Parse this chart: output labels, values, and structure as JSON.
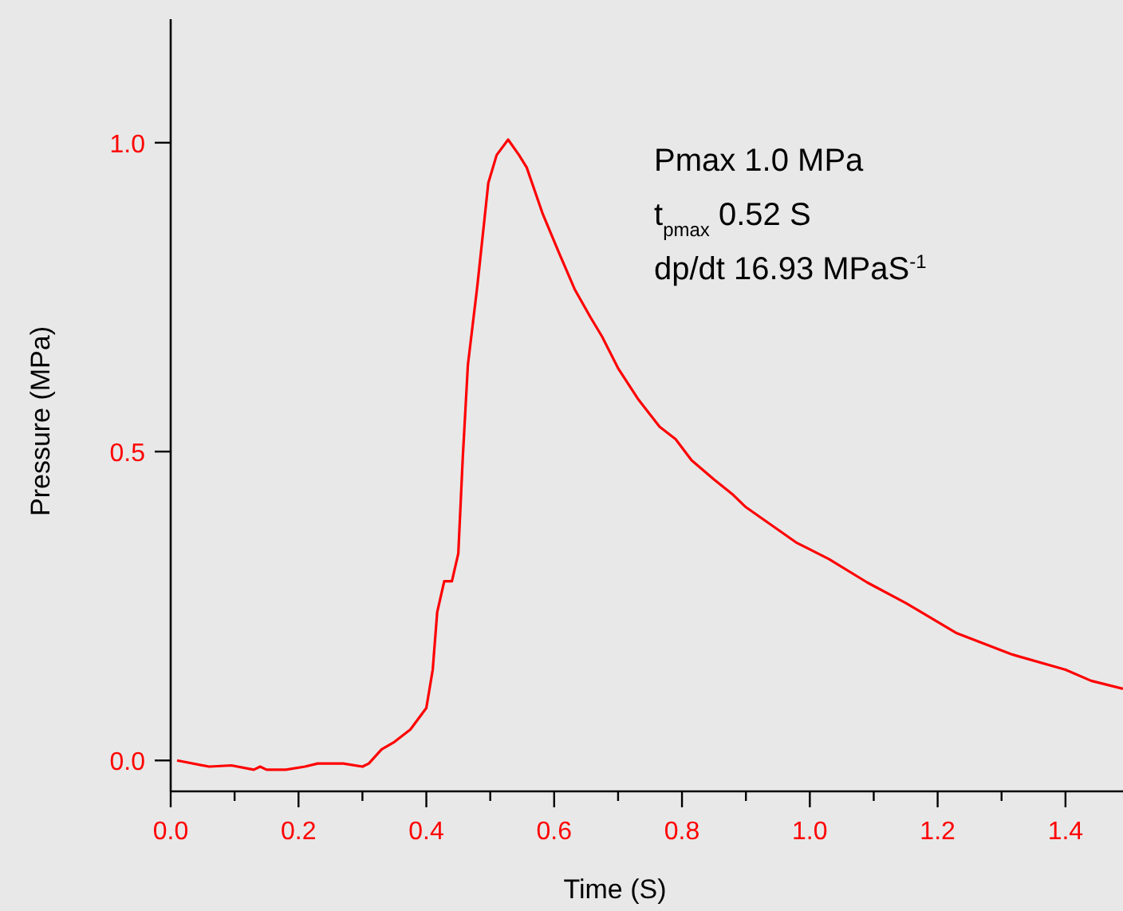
{
  "chart_data": {
    "type": "line",
    "xlabel": "Time (S)",
    "ylabel": "Pressure (MPa)",
    "annotations": [
      "Pmax 1.0 MPa",
      "t$_{pmax}$ 0.52 S",
      "dp/dt 16.93 MPaS$^{-1}$"
    ],
    "xlim": [
      0,
      1.49
    ],
    "ylim": [
      -0.05,
      1.2
    ],
    "xticks": [
      {
        "value": 0,
        "label": "0.0"
      },
      {
        "value": 0.1,
        "label": null
      },
      {
        "value": 0.2,
        "label": "0.2"
      },
      {
        "value": 0.3,
        "label": null
      },
      {
        "value": 0.4,
        "label": "0.4"
      },
      {
        "value": 0.5,
        "label": null
      },
      {
        "value": 0.6,
        "label": "0.6"
      },
      {
        "value": 0.7,
        "label": null
      },
      {
        "value": 0.8,
        "label": "0.8"
      },
      {
        "value": 0.9,
        "label": null
      },
      {
        "value": 1.0,
        "label": "1.0"
      },
      {
        "value": 1.1,
        "label": null
      },
      {
        "value": 1.2,
        "label": "1.2"
      },
      {
        "value": 1.3,
        "label": null
      },
      {
        "value": 1.4,
        "label": "1.4"
      }
    ],
    "yticks": [
      {
        "value": 0,
        "label": "0.0"
      },
      {
        "value": 0.5,
        "label": "0.5"
      },
      {
        "value": 1.0,
        "label": "1.0"
      }
    ],
    "grid": false,
    "marker": "none",
    "line_style": "solid",
    "series": [
      {
        "color": "#ff0000",
        "x": [
          0.01,
          0.06,
          0.095,
          0.13,
          0.14,
          0.15,
          0.18,
          0.21,
          0.23,
          0.27,
          0.3,
          0.31,
          0.33,
          0.35,
          0.375,
          0.4,
          0.41,
          0.417,
          0.428,
          0.44,
          0.45,
          0.457,
          0.465,
          0.48,
          0.497,
          0.51,
          0.528,
          0.545,
          0.557,
          0.582,
          0.607,
          0.632,
          0.657,
          0.675,
          0.7,
          0.732,
          0.765,
          0.79,
          0.815,
          0.85,
          0.88,
          0.9,
          0.98,
          1.03,
          1.09,
          1.15,
          1.23,
          1.315,
          1.4,
          1.44,
          1.49
        ],
        "values": [
          0,
          -0.01,
          -0.008,
          -0.015,
          -0.01,
          -0.015,
          -0.015,
          -0.01,
          -0.005,
          -0.005,
          -0.01,
          -0.005,
          0.018,
          0.03,
          0.05,
          0.085,
          0.147,
          0.24,
          0.29,
          0.29,
          0.335,
          0.49,
          0.64,
          0.77,
          0.935,
          0.98,
          1.005,
          0.98,
          0.96,
          0.885,
          0.823,
          0.763,
          0.717,
          0.686,
          0.635,
          0.584,
          0.54,
          0.52,
          0.486,
          0.455,
          0.43,
          0.41,
          0.352,
          0.326,
          0.288,
          0.255,
          0.206,
          0.172,
          0.147,
          0.129,
          0.116
        ]
      }
    ]
  }
}
